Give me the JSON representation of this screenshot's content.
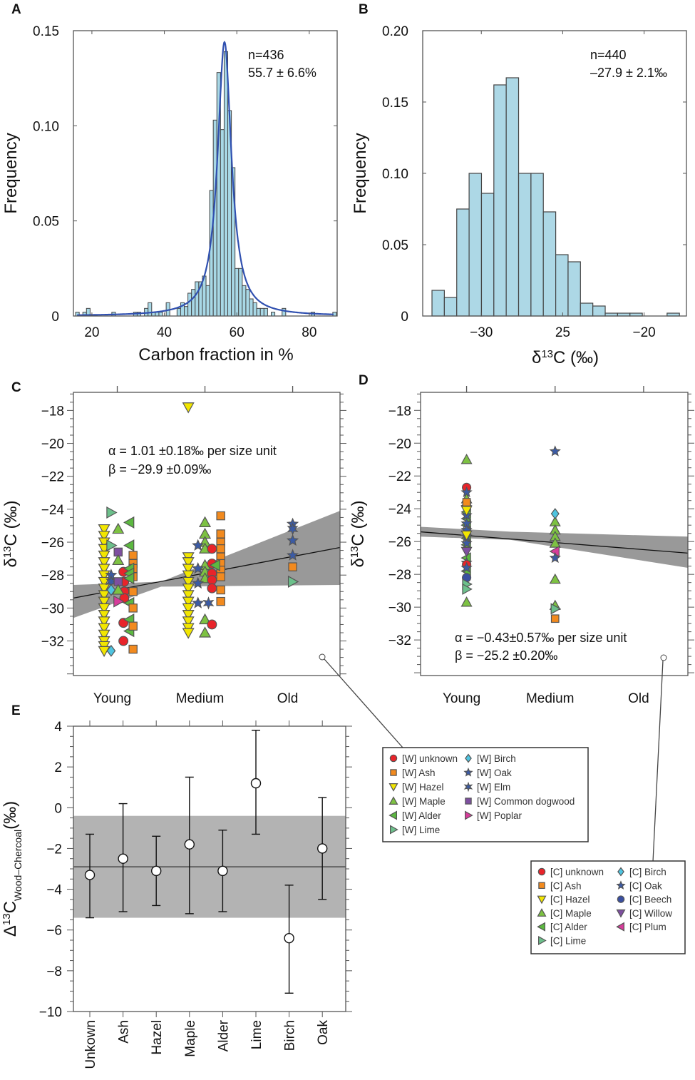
{
  "symbols": {
    "unknown": {
      "shape": "circle",
      "color": "#e8242a"
    },
    "ash": {
      "shape": "square",
      "color": "#f28a1e"
    },
    "hazel": {
      "shape": "tri-down",
      "color": "#f2e600"
    },
    "maple": {
      "shape": "tri-up",
      "color": "#7dc242"
    },
    "alder": {
      "shape": "tri-left",
      "color": "#5cb840"
    },
    "lime": {
      "shape": "tri-right",
      "color": "#6cc08b"
    },
    "birch": {
      "shape": "diamond",
      "color": "#4fc4e0"
    },
    "oak": {
      "shape": "star",
      "color": "#3b5ba5"
    },
    "elm": {
      "shape": "star6",
      "color": "#3b5ba5"
    },
    "dogwood": {
      "shape": "square",
      "color": "#7e4fa0"
    },
    "poplar": {
      "shape": "tri-right",
      "color": "#d63c9a"
    },
    "beech": {
      "shape": "circle",
      "color": "#3a4fa0"
    },
    "willow": {
      "shape": "tri-down",
      "color": "#7e4fa0"
    },
    "plum": {
      "shape": "tri-left",
      "color": "#d63c9a"
    }
  },
  "chart_data": [
    {
      "panel": "A",
      "type": "bar",
      "xlabel": "Carbon fraction in %",
      "ylabel": "Frequency",
      "xlim": [
        14.9,
        87.7
      ],
      "ylim": [
        0,
        0.15
      ],
      "xticks": [
        {
          "v": 20,
          "label": "20"
        },
        {
          "v": 40,
          "label": "40"
        },
        {
          "v": 60,
          "label": "60"
        },
        {
          "v": 80,
          "label": "80"
        }
      ],
      "yticks": [
        {
          "v": 0,
          "label": "0"
        },
        {
          "v": 0.05,
          "label": "0.05"
        },
        {
          "v": 0.1,
          "label": "0.10"
        },
        {
          "v": 0.15,
          "label": "0.15"
        }
      ],
      "bin_width": 1,
      "bins": [
        [
          16,
          0.002
        ],
        [
          18,
          0.002
        ],
        [
          19,
          0.004
        ],
        [
          26,
          0.002
        ],
        [
          32,
          0.002
        ],
        [
          33,
          0.002
        ],
        [
          35,
          0.004
        ],
        [
          36,
          0.007
        ],
        [
          37,
          0.002
        ],
        [
          38,
          0.002
        ],
        [
          39,
          0.002
        ],
        [
          41,
          0.007
        ],
        [
          44,
          0.004
        ],
        [
          45,
          0.007
        ],
        [
          46,
          0.005
        ],
        [
          47,
          0.012
        ],
        [
          48,
          0.014
        ],
        [
          49,
          0.018
        ],
        [
          50,
          0.018
        ],
        [
          51,
          0.021
        ],
        [
          52,
          0.016
        ],
        [
          53,
          0.066
        ],
        [
          54,
          0.103
        ],
        [
          55,
          0.128
        ],
        [
          56,
          0.098
        ],
        [
          57,
          0.139
        ],
        [
          58,
          0.108
        ],
        [
          59,
          0.078
        ],
        [
          60,
          0.025
        ],
        [
          61,
          0.025
        ],
        [
          62,
          0.016
        ],
        [
          63,
          0.014
        ],
        [
          64,
          0.009
        ],
        [
          65,
          0.007
        ],
        [
          66,
          0.004
        ],
        [
          67,
          0.004
        ],
        [
          68,
          0.004
        ],
        [
          70,
          0.002
        ],
        [
          73,
          0.004
        ],
        [
          81,
          0.002
        ],
        [
          87,
          0.002
        ]
      ],
      "fit": {
        "type": "lorentzian",
        "center": 56.6,
        "peak": 0.144,
        "hwhm": 2.3,
        "color": "#3050b0"
      },
      "annotation": [
        "n=436",
        "55.7 ± 6.6%"
      ],
      "bar_color": "#a8d8e6"
    },
    {
      "panel": "B",
      "type": "bar",
      "xlabel": {
        "prefix": "δ",
        "sup": "13",
        "suffix": "C (‰)"
      },
      "ylabel": "Frequency",
      "xlim": [
        -33.6,
        -17.4
      ],
      "ylim": [
        0,
        0.2
      ],
      "xticks": [
        {
          "v": -30,
          "label": "−30"
        },
        {
          "v": -25,
          "label": "25"
        },
        {
          "v": -20,
          "label": "−20"
        }
      ],
      "yticks": [
        {
          "v": 0,
          "label": "0"
        },
        {
          "v": 0.05,
          "label": "0.05"
        },
        {
          "v": 0.1,
          "label": "0.10"
        },
        {
          "v": 0.15,
          "label": "0.15"
        },
        {
          "v": 0.2,
          "label": "0.20"
        }
      ],
      "bin_start": -33.03,
      "bin_width": 0.76,
      "values": [
        0.018,
        0.013,
        0.075,
        0.1,
        0.086,
        0.162,
        0.167,
        0.1,
        0.1,
        0.073,
        0.043,
        0.038,
        0.009,
        0.007,
        0.002,
        0.002,
        0.002,
        0,
        0,
        0.002
      ],
      "annotation": [
        "n=440",
        "–27.9 ± 2.1‰"
      ],
      "bar_color": "#add8e6"
    },
    {
      "panel": "C",
      "type": "scatter",
      "ylabel": {
        "prefix": "δ",
        "sup": "13",
        "suffix": "C (‰)"
      },
      "xlim": [
        0.5,
        3.54
      ],
      "ylim": [
        -34.1,
        -16.9
      ],
      "xticks": [
        {
          "v": 1,
          "label": "Young"
        },
        {
          "v": 2,
          "label": "Medium"
        },
        {
          "v": 3,
          "label": "Old"
        }
      ],
      "yticks": [
        -18,
        -20,
        -22,
        -24,
        -26,
        -28,
        -30,
        -32
      ],
      "regression": {
        "slope": 1.01,
        "intercept": -29.9
      },
      "band_upper": [
        [
          0.5,
          -28.6
        ],
        [
          1.5,
          -28.4
        ],
        [
          3.54,
          -24.1
        ]
      ],
      "band_lower": [
        [
          0.5,
          -30.6
        ],
        [
          1.5,
          -28.7
        ],
        [
          3.54,
          -28.6
        ]
      ],
      "annotation": [
        "α = 1.01 ±0.18‰ per size unit",
        "β = −29.9 ±0.09‰"
      ],
      "columns": [
        {
          "x": 0.85,
          "symbol": "hazel",
          "y": [
            -25.2,
            -25.6,
            -26.0,
            -26.4,
            -26.8,
            -27.2,
            -27.6,
            -28.0,
            -28.4,
            -28.8,
            -29.2,
            -29.6,
            -30.0,
            -30.4,
            -30.8,
            -31.2,
            -31.6,
            -32.0,
            -32.3,
            -32.6
          ]
        },
        {
          "x": 1.81,
          "symbol": "hazel",
          "y": [
            -26.9,
            -27.2,
            -27.6,
            -28.0,
            -28.4,
            -28.8,
            -29.2,
            -29.6,
            -30.0,
            -30.4,
            -30.8,
            -31.2,
            -31.5
          ]
        }
      ],
      "points": [
        [
          0.93,
          -24.2,
          "lime"
        ],
        [
          1.14,
          -24.8,
          "alder"
        ],
        [
          1.01,
          -25.2,
          "maple"
        ],
        [
          1.14,
          -26.2,
          "alder"
        ],
        [
          0.93,
          -26.2,
          "lime"
        ],
        [
          1.01,
          -26.6,
          "dogwood"
        ],
        [
          1.01,
          -27.1,
          "maple"
        ],
        [
          1.18,
          -26.8,
          "ash"
        ],
        [
          1.18,
          -27.3,
          "ash"
        ],
        [
          1.18,
          -27.6,
          "ash"
        ],
        [
          1.18,
          -28.1,
          "ash"
        ],
        [
          1.07,
          -27.8,
          "unknown"
        ],
        [
          1.08,
          -28.4,
          "unknown"
        ],
        [
          1.08,
          -29.0,
          "unknown"
        ],
        [
          1.08,
          -29.4,
          "unknown"
        ],
        [
          1.14,
          -27.6,
          "alder"
        ],
        [
          1.14,
          -27.9,
          "alder"
        ],
        [
          1.14,
          -28.2,
          "alder"
        ],
        [
          0.93,
          -28.0,
          "oak"
        ],
        [
          0.93,
          -28.4,
          "elm"
        ],
        [
          1.01,
          -28.4,
          "dogwood"
        ],
        [
          0.93,
          -28.9,
          "birch"
        ],
        [
          1.01,
          -28.9,
          "maple"
        ],
        [
          1.18,
          -29.0,
          "ash"
        ],
        [
          1.01,
          -29.6,
          "poplar"
        ],
        [
          1.14,
          -29.7,
          "alder"
        ],
        [
          1.18,
          -30.0,
          "ash"
        ],
        [
          1.07,
          -30.9,
          "unknown"
        ],
        [
          1.14,
          -30.7,
          "alder"
        ],
        [
          1.14,
          -31.4,
          "alder"
        ],
        [
          1.18,
          -31.1,
          "ash"
        ],
        [
          1.07,
          -32.0,
          "unknown"
        ],
        [
          1.18,
          -32.5,
          "ash"
        ],
        [
          0.93,
          -32.6,
          "birch"
        ],
        [
          1.81,
          -17.8,
          "hazel"
        ],
        [
          2.0,
          -24.8,
          "maple"
        ],
        [
          2.0,
          -25.5,
          "maple"
        ],
        [
          2.0,
          -26.0,
          "maple"
        ],
        [
          2.0,
          -26.4,
          "maple"
        ],
        [
          2.0,
          -27.4,
          "maple"
        ],
        [
          2.0,
          -27.8,
          "maple"
        ],
        [
          2.0,
          -28.2,
          "maple"
        ],
        [
          2.0,
          -30.7,
          "maple"
        ],
        [
          2.0,
          -31.5,
          "maple"
        ],
        [
          2.08,
          -26.4,
          "unknown"
        ],
        [
          2.08,
          -27.3,
          "unknown"
        ],
        [
          2.08,
          -27.9,
          "unknown"
        ],
        [
          2.08,
          -28.3,
          "unknown"
        ],
        [
          2.08,
          -28.8,
          "unknown"
        ],
        [
          2.08,
          -31.0,
          "unknown"
        ],
        [
          1.92,
          -26.2,
          "oak"
        ],
        [
          1.92,
          -27.6,
          "oak"
        ],
        [
          1.92,
          -28.5,
          "oak"
        ],
        [
          1.92,
          -29.7,
          "oak"
        ],
        [
          2.04,
          -29.7,
          "elm"
        ],
        [
          2.18,
          -24.4,
          "ash"
        ],
        [
          2.18,
          -25.5,
          "ash"
        ],
        [
          2.18,
          -26.0,
          "ash"
        ],
        [
          2.18,
          -26.4,
          "ash"
        ],
        [
          2.18,
          -26.9,
          "ash"
        ],
        [
          2.18,
          -27.3,
          "ash"
        ],
        [
          2.18,
          -27.7,
          "ash"
        ],
        [
          2.18,
          -28.1,
          "ash"
        ],
        [
          2.18,
          -28.9,
          "ash"
        ],
        [
          2.18,
          -29.6,
          "ash"
        ],
        [
          2.12,
          -27.4,
          "alder"
        ],
        [
          3.0,
          -24.9,
          "oak"
        ],
        [
          3.0,
          -25.2,
          "elm"
        ],
        [
          3.0,
          -25.9,
          "oak"
        ],
        [
          3.0,
          -26.8,
          "oak"
        ],
        [
          3.0,
          -27.5,
          "ash"
        ],
        [
          3.0,
          -28.4,
          "lime"
        ]
      ]
    },
    {
      "panel": "D",
      "type": "scatter",
      "ylabel": {
        "prefix": "δ",
        "sup": "13",
        "suffix": "C (‰)"
      },
      "xlim": [
        0.48,
        3.5
      ],
      "ylim": [
        -34.17,
        -16.9
      ],
      "xticks": [
        {
          "v": 1,
          "label": "Young"
        },
        {
          "v": 2,
          "label": "Medium"
        },
        {
          "v": 3,
          "label": "Old"
        }
      ],
      "yticks": [
        -18,
        -20,
        -22,
        -24,
        -26,
        -28,
        -30,
        -32
      ],
      "regression": {
        "slope": -0.43,
        "intercept": -25.2
      },
      "band_upper": [
        [
          0.48,
          -25.1
        ],
        [
          1.5,
          -25.4
        ],
        [
          3.5,
          -25.7
        ]
      ],
      "band_lower": [
        [
          0.48,
          -25.7
        ],
        [
          1.5,
          -25.9
        ],
        [
          3.5,
          -27.6
        ]
      ],
      "annotation": [
        "α = −0.43±0.57‰ per size unit",
        "β = −25.2 ±0.20‰"
      ],
      "columns": [
        {
          "x": 1.0,
          "symbol": "alder",
          "y": [
            -23.8,
            -24.2,
            -24.6,
            -25.0,
            -25.4,
            -25.8,
            -26.2,
            -27.0,
            -27.8
          ]
        },
        {
          "x": 1.0,
          "symbol": "oak",
          "y": [
            -23.9,
            -24.4,
            -24.9,
            -25.3,
            -25.7,
            -26.1,
            -27.3
          ]
        },
        {
          "x": 2.0,
          "symbol": "maple",
          "y": [
            -24.8,
            -25.3,
            -25.7,
            -26.1
          ]
        }
      ],
      "points": [
        [
          1.0,
          -21.0,
          "maple"
        ],
        [
          1.0,
          -22.7,
          "unknown"
        ],
        [
          1.0,
          -23.0,
          "oak"
        ],
        [
          1.0,
          -23.4,
          "maple"
        ],
        [
          1.0,
          -23.6,
          "ash"
        ],
        [
          1.0,
          -24.1,
          "hazel"
        ],
        [
          1.0,
          -25.6,
          "hazel"
        ],
        [
          1.0,
          -26.6,
          "willow"
        ],
        [
          1.0,
          -27.4,
          "unknown"
        ],
        [
          1.0,
          -27.6,
          "oak"
        ],
        [
          1.0,
          -28.2,
          "beech"
        ],
        [
          1.0,
          -28.6,
          "lime"
        ],
        [
          1.0,
          -28.9,
          "lime"
        ],
        [
          1.0,
          -29.7,
          "maple"
        ],
        [
          2.0,
          -20.5,
          "oak"
        ],
        [
          2.0,
          -24.3,
          "birch"
        ],
        [
          2.0,
          -26.6,
          "plum"
        ],
        [
          2.0,
          -27.0,
          "oak"
        ],
        [
          2.0,
          -28.3,
          "maple"
        ],
        [
          2.0,
          -29.9,
          "maple"
        ],
        [
          2.0,
          -30.1,
          "lime"
        ],
        [
          2.0,
          -30.7,
          "ash"
        ]
      ]
    },
    {
      "panel": "E",
      "type": "scatter",
      "ylabel": {
        "prefix": "Δ",
        "sup": "13",
        "mid": "C",
        "sub": "Wood–Chercoal",
        "suffix": "(‰)"
      },
      "ylim": [
        -10,
        4
      ],
      "yticks": [
        4,
        2,
        0,
        -2,
        -4,
        -6,
        -8,
        -10
      ],
      "categories": [
        "Unkown",
        "Ash",
        "Hazel",
        "Maple",
        "Alder",
        "Lime",
        "Birch",
        "Oak"
      ],
      "values": [
        -3.3,
        -2.5,
        -3.1,
        -1.8,
        -3.1,
        1.2,
        -6.4,
        -2.0
      ],
      "err_low": [
        -5.4,
        -5.1,
        -4.8,
        -5.2,
        -5.1,
        -1.3,
        -9.1,
        -4.5
      ],
      "err_high": [
        -1.3,
        0.2,
        -1.4,
        1.5,
        -1.1,
        3.8,
        -3.8,
        0.5
      ],
      "mean": -2.9,
      "band": [
        -5.4,
        -0.4
      ]
    }
  ],
  "panel_labels": [
    "A",
    "B",
    "C",
    "D",
    "E"
  ],
  "legend_wood": {
    "col1": [
      [
        "[W] unknown",
        "unknown"
      ],
      [
        "[W] Ash",
        "ash"
      ],
      [
        "[W] Hazel",
        "hazel"
      ],
      [
        "[W] Maple",
        "maple"
      ],
      [
        "[W] Alder",
        "alder"
      ],
      [
        "[W] Lime",
        "lime"
      ]
    ],
    "col2": [
      [
        "[W] Birch",
        "birch"
      ],
      [
        "[W] Oak",
        "oak"
      ],
      [
        "[W] Elm",
        "elm"
      ],
      [
        "[W] Common dogwood",
        "dogwood"
      ],
      [
        "[W] Poplar",
        "poplar"
      ]
    ]
  },
  "legend_charcoal": {
    "col1": [
      [
        "[C] unknown",
        "unknown"
      ],
      [
        "[C] Ash",
        "ash"
      ],
      [
        "[C] Hazel",
        "hazel"
      ],
      [
        "[C] Maple",
        "maple"
      ],
      [
        "[C] Alder",
        "alder"
      ],
      [
        "[C] Lime",
        "lime"
      ]
    ],
    "col2": [
      [
        "[C] Birch",
        "birch"
      ],
      [
        "[C] Oak",
        "oak"
      ],
      [
        "[C] Beech",
        "beech"
      ],
      [
        "[C] Willow",
        "willow"
      ],
      [
        "[C] Plum",
        "plum"
      ]
    ]
  }
}
